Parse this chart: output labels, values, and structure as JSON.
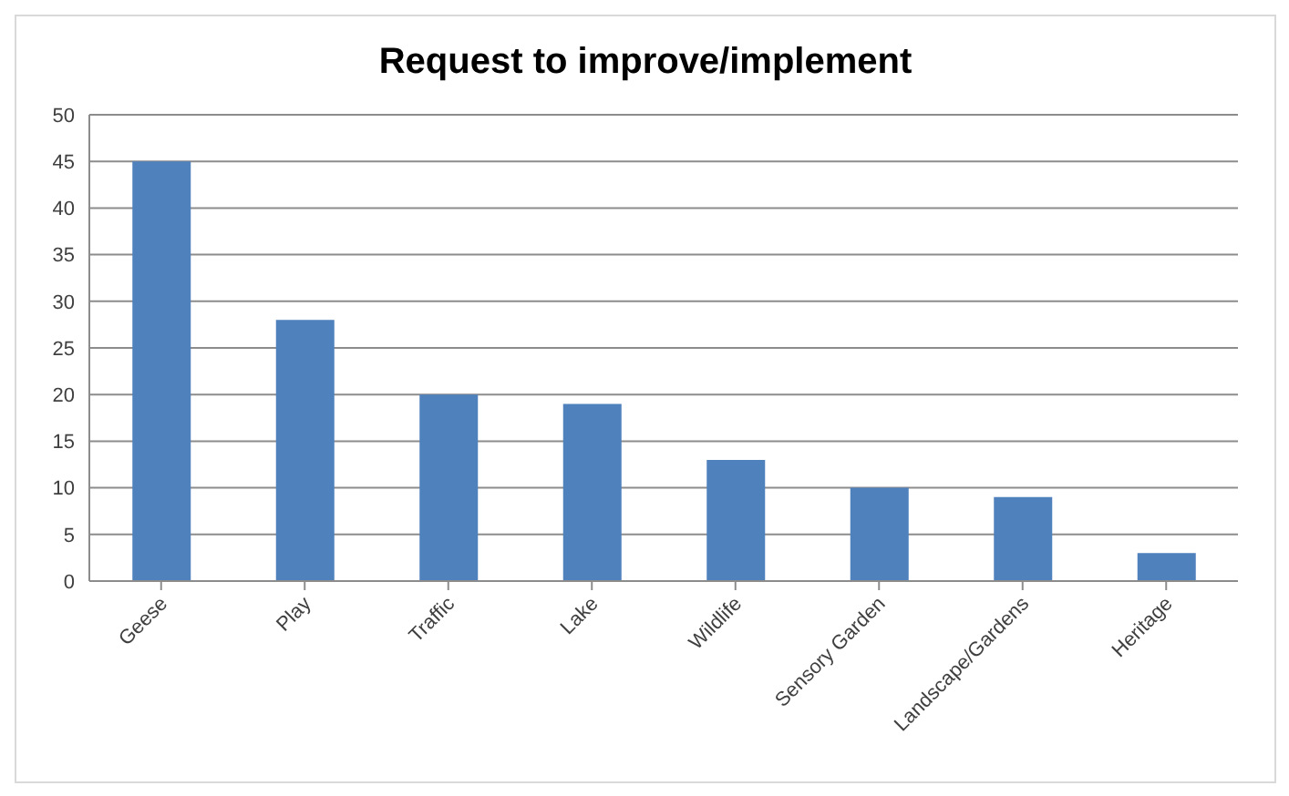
{
  "chart_data": {
    "type": "bar",
    "title": "Request to improve/implement",
    "categories": [
      "Geese",
      "Play",
      "Traffic",
      "Lake",
      "Wildlife",
      "Sensory Garden",
      "Landscape/Gardens",
      "Heritage"
    ],
    "values": [
      45,
      28,
      20,
      19,
      13,
      10,
      9,
      3
    ],
    "color": "#4f81bd",
    "ylim": [
      0,
      50
    ],
    "yticks": [
      0,
      5,
      10,
      15,
      20,
      25,
      30,
      35,
      40,
      45,
      50
    ],
    "grid": "y",
    "legend": false
  }
}
